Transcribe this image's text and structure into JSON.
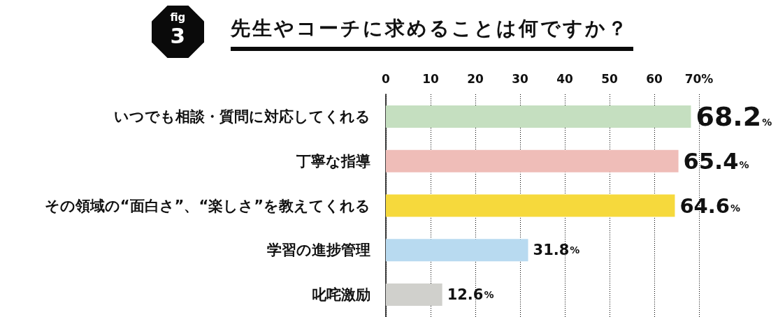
{
  "chart_data": {
    "type": "bar",
    "orientation": "horizontal",
    "title": "先生やコーチに求めることは何ですか？",
    "annotations": [
      "fig",
      "3"
    ],
    "categories": [
      "いつでも相談・質問に対応してくれる",
      "丁寧な指導",
      "その領域の“面白さ”、“楽しさ”を教えてくれる",
      "学習の進捗管理",
      "叱咤激励"
    ],
    "values": [
      68.2,
      65.4,
      64.6,
      31.8,
      12.6
    ],
    "colors": [
      "#c5dfc0",
      "#efbdb8",
      "#f6d93c",
      "#b8daf0",
      "#d0d0cc"
    ],
    "value_labels": [
      "68.2%",
      "65.4%",
      "64.6%",
      "31.8%",
      "12.6%"
    ],
    "xlim": [
      0,
      70
    ],
    "xticks": [
      0,
      10,
      20,
      30,
      40,
      50,
      60,
      {
        "value": 70,
        "label": "70%"
      }
    ],
    "grid": "x"
  }
}
